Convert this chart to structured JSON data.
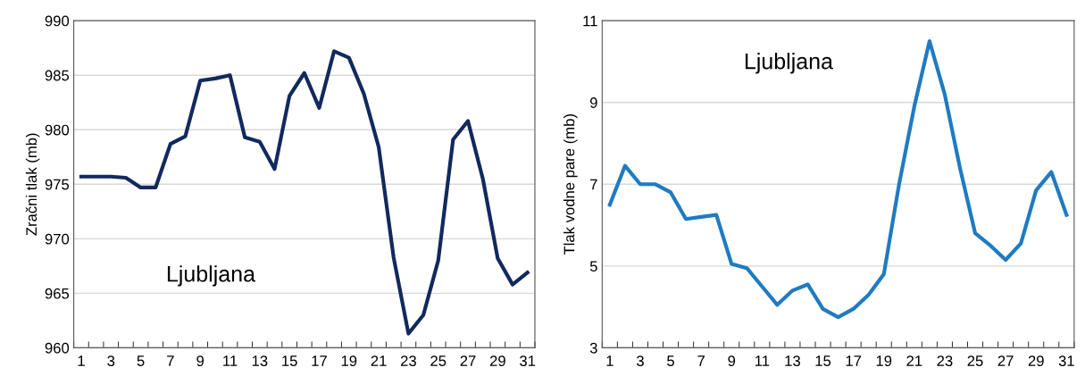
{
  "chart_data": [
    {
      "type": "line",
      "ylabel": "Zračni tlak (mb)",
      "annotations": [
        "Ljubljana"
      ],
      "categories": [
        "1",
        null,
        "3",
        null,
        "5",
        null,
        "7",
        null,
        "9",
        null,
        "11",
        null,
        "13",
        null,
        "15",
        null,
        "17",
        null,
        "19",
        null,
        "21",
        null,
        "23",
        null,
        "25",
        null,
        "27",
        null,
        "29",
        null,
        "31"
      ],
      "series": [
        {
          "color": "#12295e",
          "values": [
            975.7,
            975.7,
            975.7,
            975.6,
            974.7,
            974.7,
            978.7,
            979.4,
            984.5,
            984.7,
            985.0,
            979.3,
            978.9,
            976.4,
            983.1,
            985.2,
            982.0,
            987.2,
            986.6,
            983.3,
            978.4,
            968.3,
            961.3,
            963.0,
            968.0,
            979.1,
            980.8,
            975.5,
            968.2,
            965.8,
            966.9
          ]
        }
      ],
      "ylim": [
        960,
        990
      ],
      "yticks": [
        960,
        965,
        970,
        975,
        980,
        985,
        990
      ],
      "grid": "y",
      "legend": false
    },
    {
      "type": "line",
      "ylabel": "Tlak vodne pare (mb)",
      "annotations": [
        "Ljubljana"
      ],
      "categories": [
        "1",
        null,
        "3",
        null,
        "5",
        null,
        "7",
        null,
        "9",
        null,
        "11",
        null,
        "13",
        null,
        "15",
        null,
        "17",
        null,
        "19",
        null,
        "21",
        null,
        "23",
        null,
        "25",
        null,
        "27",
        null,
        "29",
        null,
        "31"
      ],
      "series": [
        {
          "color": "#1f7bc1",
          "values": [
            6.5,
            7.45,
            7.0,
            7.0,
            6.8,
            6.15,
            6.2,
            6.25,
            5.05,
            4.95,
            4.5,
            4.05,
            4.4,
            4.55,
            3.95,
            3.75,
            3.95,
            4.3,
            4.8,
            7.0,
            8.9,
            10.5,
            9.2,
            7.4,
            5.8,
            5.5,
            5.15,
            5.55,
            6.85,
            7.3,
            6.25
          ]
        }
      ],
      "ylim": [
        3,
        11
      ],
      "yticks": [
        3,
        5,
        7,
        9,
        11
      ],
      "grid": "y",
      "legend": false
    }
  ]
}
